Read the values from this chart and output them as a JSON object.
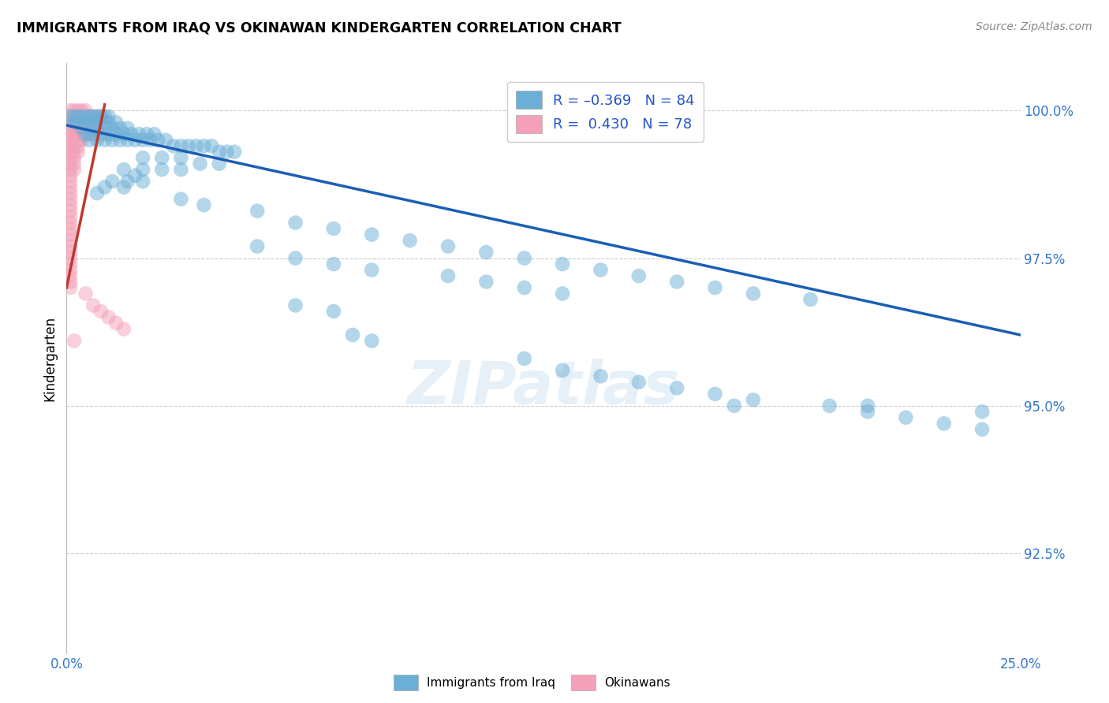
{
  "title": "IMMIGRANTS FROM IRAQ VS OKINAWAN KINDERGARTEN CORRELATION CHART",
  "source": "Source: ZipAtlas.com",
  "ylabel": "Kindergarten",
  "ytick_labels": [
    "92.5%",
    "95.0%",
    "97.5%",
    "100.0%"
  ],
  "ytick_values": [
    0.925,
    0.95,
    0.975,
    1.0
  ],
  "xmin": 0.0,
  "xmax": 0.25,
  "ymin": 0.908,
  "ymax": 1.008,
  "legend_labels_bottom": [
    "Immigrants from Iraq",
    "Okinawans"
  ],
  "blue_color": "#6baed6",
  "pink_color": "#f4a0b8",
  "trend_blue": "#1a5fb4",
  "trend_pink": "#c0392b",
  "watermark": "ZIPatlas",
  "blue_scatter": [
    [
      0.001,
      0.999
    ],
    [
      0.002,
      0.999
    ],
    [
      0.003,
      0.999
    ],
    [
      0.004,
      0.999
    ],
    [
      0.005,
      0.999
    ],
    [
      0.006,
      0.999
    ],
    [
      0.007,
      0.999
    ],
    [
      0.008,
      0.999
    ],
    [
      0.009,
      0.999
    ],
    [
      0.01,
      0.999
    ],
    [
      0.011,
      0.999
    ],
    [
      0.002,
      0.998
    ],
    [
      0.003,
      0.998
    ],
    [
      0.005,
      0.998
    ],
    [
      0.007,
      0.998
    ],
    [
      0.009,
      0.998
    ],
    [
      0.011,
      0.998
    ],
    [
      0.013,
      0.998
    ],
    [
      0.004,
      0.997
    ],
    [
      0.006,
      0.997
    ],
    [
      0.008,
      0.997
    ],
    [
      0.01,
      0.997
    ],
    [
      0.012,
      0.997
    ],
    [
      0.014,
      0.997
    ],
    [
      0.016,
      0.997
    ],
    [
      0.005,
      0.996
    ],
    [
      0.007,
      0.996
    ],
    [
      0.009,
      0.996
    ],
    [
      0.011,
      0.996
    ],
    [
      0.013,
      0.996
    ],
    [
      0.015,
      0.996
    ],
    [
      0.017,
      0.996
    ],
    [
      0.019,
      0.996
    ],
    [
      0.021,
      0.996
    ],
    [
      0.023,
      0.996
    ],
    [
      0.006,
      0.995
    ],
    [
      0.008,
      0.995
    ],
    [
      0.01,
      0.995
    ],
    [
      0.012,
      0.995
    ],
    [
      0.014,
      0.995
    ],
    [
      0.016,
      0.995
    ],
    [
      0.018,
      0.995
    ],
    [
      0.02,
      0.995
    ],
    [
      0.022,
      0.995
    ],
    [
      0.024,
      0.995
    ],
    [
      0.026,
      0.995
    ],
    [
      0.028,
      0.994
    ],
    [
      0.03,
      0.994
    ],
    [
      0.032,
      0.994
    ],
    [
      0.034,
      0.994
    ],
    [
      0.036,
      0.994
    ],
    [
      0.038,
      0.994
    ],
    [
      0.04,
      0.993
    ],
    [
      0.042,
      0.993
    ],
    [
      0.044,
      0.993
    ],
    [
      0.02,
      0.992
    ],
    [
      0.025,
      0.992
    ],
    [
      0.03,
      0.992
    ],
    [
      0.035,
      0.991
    ],
    [
      0.04,
      0.991
    ],
    [
      0.015,
      0.99
    ],
    [
      0.02,
      0.99
    ],
    [
      0.025,
      0.99
    ],
    [
      0.03,
      0.99
    ],
    [
      0.018,
      0.989
    ],
    [
      0.012,
      0.988
    ],
    [
      0.016,
      0.988
    ],
    [
      0.02,
      0.988
    ],
    [
      0.01,
      0.987
    ],
    [
      0.015,
      0.987
    ],
    [
      0.008,
      0.986
    ],
    [
      0.03,
      0.985
    ],
    [
      0.036,
      0.984
    ],
    [
      0.05,
      0.983
    ],
    [
      0.06,
      0.981
    ],
    [
      0.07,
      0.98
    ],
    [
      0.08,
      0.979
    ],
    [
      0.09,
      0.978
    ],
    [
      0.1,
      0.977
    ],
    [
      0.11,
      0.976
    ],
    [
      0.12,
      0.975
    ],
    [
      0.13,
      0.974
    ],
    [
      0.14,
      0.973
    ],
    [
      0.15,
      0.972
    ],
    [
      0.16,
      0.971
    ],
    [
      0.17,
      0.97
    ],
    [
      0.18,
      0.969
    ],
    [
      0.195,
      0.968
    ],
    [
      0.05,
      0.977
    ],
    [
      0.06,
      0.975
    ],
    [
      0.07,
      0.974
    ],
    [
      0.08,
      0.973
    ],
    [
      0.1,
      0.972
    ],
    [
      0.11,
      0.971
    ],
    [
      0.12,
      0.97
    ],
    [
      0.13,
      0.969
    ],
    [
      0.06,
      0.967
    ],
    [
      0.07,
      0.966
    ],
    [
      0.075,
      0.962
    ],
    [
      0.08,
      0.961
    ],
    [
      0.12,
      0.958
    ],
    [
      0.13,
      0.956
    ],
    [
      0.14,
      0.955
    ],
    [
      0.15,
      0.954
    ],
    [
      0.16,
      0.953
    ],
    [
      0.17,
      0.952
    ],
    [
      0.18,
      0.951
    ],
    [
      0.2,
      0.95
    ],
    [
      0.21,
      0.949
    ],
    [
      0.22,
      0.948
    ],
    [
      0.23,
      0.947
    ],
    [
      0.24,
      0.946
    ],
    [
      0.175,
      0.95
    ],
    [
      0.21,
      0.95
    ],
    [
      0.24,
      0.949
    ]
  ],
  "pink_scatter": [
    [
      0.001,
      1.0
    ],
    [
      0.002,
      1.0
    ],
    [
      0.003,
      1.0
    ],
    [
      0.004,
      1.0
    ],
    [
      0.005,
      1.0
    ],
    [
      0.001,
      0.999
    ],
    [
      0.002,
      0.999
    ],
    [
      0.003,
      0.999
    ],
    [
      0.004,
      0.999
    ],
    [
      0.005,
      0.999
    ],
    [
      0.006,
      0.999
    ],
    [
      0.007,
      0.999
    ],
    [
      0.008,
      0.999
    ],
    [
      0.009,
      0.999
    ],
    [
      0.001,
      0.998
    ],
    [
      0.002,
      0.998
    ],
    [
      0.003,
      0.998
    ],
    [
      0.004,
      0.998
    ],
    [
      0.005,
      0.998
    ],
    [
      0.006,
      0.998
    ],
    [
      0.007,
      0.998
    ],
    [
      0.008,
      0.998
    ],
    [
      0.001,
      0.997
    ],
    [
      0.002,
      0.997
    ],
    [
      0.003,
      0.997
    ],
    [
      0.004,
      0.997
    ],
    [
      0.005,
      0.997
    ],
    [
      0.006,
      0.997
    ],
    [
      0.007,
      0.997
    ],
    [
      0.001,
      0.996
    ],
    [
      0.002,
      0.996
    ],
    [
      0.003,
      0.996
    ],
    [
      0.004,
      0.996
    ],
    [
      0.005,
      0.996
    ],
    [
      0.006,
      0.996
    ],
    [
      0.001,
      0.995
    ],
    [
      0.002,
      0.995
    ],
    [
      0.003,
      0.995
    ],
    [
      0.004,
      0.995
    ],
    [
      0.001,
      0.994
    ],
    [
      0.002,
      0.994
    ],
    [
      0.003,
      0.994
    ],
    [
      0.001,
      0.993
    ],
    [
      0.002,
      0.993
    ],
    [
      0.003,
      0.993
    ],
    [
      0.001,
      0.992
    ],
    [
      0.002,
      0.992
    ],
    [
      0.001,
      0.991
    ],
    [
      0.002,
      0.991
    ],
    [
      0.001,
      0.99
    ],
    [
      0.002,
      0.99
    ],
    [
      0.001,
      0.989
    ],
    [
      0.001,
      0.988
    ],
    [
      0.001,
      0.987
    ],
    [
      0.001,
      0.986
    ],
    [
      0.001,
      0.985
    ],
    [
      0.001,
      0.984
    ],
    [
      0.001,
      0.983
    ],
    [
      0.001,
      0.982
    ],
    [
      0.001,
      0.981
    ],
    [
      0.001,
      0.98
    ],
    [
      0.001,
      0.979
    ],
    [
      0.001,
      0.978
    ],
    [
      0.001,
      0.977
    ],
    [
      0.001,
      0.976
    ],
    [
      0.001,
      0.975
    ],
    [
      0.001,
      0.974
    ],
    [
      0.001,
      0.973
    ],
    [
      0.001,
      0.972
    ],
    [
      0.001,
      0.971
    ],
    [
      0.001,
      0.97
    ],
    [
      0.005,
      0.969
    ],
    [
      0.007,
      0.967
    ],
    [
      0.009,
      0.966
    ],
    [
      0.011,
      0.965
    ],
    [
      0.013,
      0.964
    ],
    [
      0.015,
      0.963
    ],
    [
      0.002,
      0.961
    ]
  ],
  "blue_trend_x": [
    0.0,
    0.25
  ],
  "blue_trend_y": [
    0.9975,
    0.962
  ],
  "pink_trend_x": [
    0.0,
    0.01
  ],
  "pink_trend_y": [
    0.97,
    1.001
  ]
}
